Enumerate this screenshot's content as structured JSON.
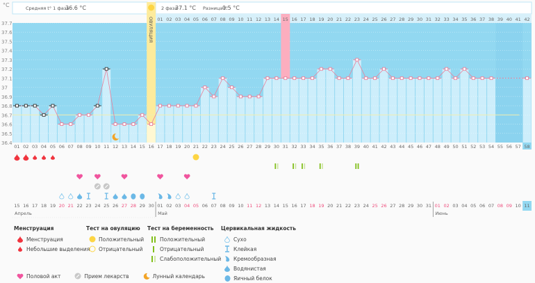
{
  "header": {
    "unit": "°C",
    "phase1_label": "Средняя t° 1 фаза",
    "phase1_value": "36.6 °C",
    "phase2_label": "2 фаза",
    "phase2_value": "37.1 °C",
    "diff_label": "Разница t°",
    "diff_value": "0.5 °C",
    "ovulation_label": "ОВУЛЯЦИЯ"
  },
  "colors": {
    "sky": "#92d8f1",
    "bar": "#cdeefb",
    "line": "#e8809b",
    "ovulation": "#fdeb9c",
    "pink_day": "#fcaebf",
    "coverline": "#f2edaf",
    "weekend": "#ee4c7c"
  },
  "chart_data": {
    "type": "line",
    "title": "",
    "ylabel": "°C",
    "xlabel": "",
    "ylim": [
      36.4,
      37.7
    ],
    "yticks": [
      "36.4",
      "36.5",
      "36.6",
      "36.7",
      "36.8",
      "36.9",
      "37",
      "37.1",
      "37.2",
      "37.3",
      "37.4",
      "37.5",
      "37.6",
      "37.7"
    ],
    "coverline": 36.7,
    "ovulation_day": 16,
    "highlight_phase2_day": 15,
    "cycle_days": [
      "01",
      "02",
      "03",
      "04",
      "05",
      "06",
      "07",
      "08",
      "09",
      "10",
      "11",
      "12",
      "13",
      "14",
      "15",
      "16",
      "17",
      "18",
      "19",
      "20",
      "21",
      "22",
      "23",
      "24",
      "25",
      "26",
      "27",
      "28",
      "29",
      "30",
      "31",
      "32",
      "33",
      "34",
      "35",
      "36",
      "37",
      "38",
      "39",
      "40",
      "41",
      "42",
      "43",
      "44",
      "45",
      "46",
      "47",
      "48",
      "49",
      "50",
      "51",
      "52",
      "53",
      "54",
      "55",
      "56",
      "57",
      "58"
    ],
    "phase2_days": [
      "01",
      "02",
      "03",
      "04",
      "05",
      "06",
      "07",
      "08",
      "09",
      "10",
      "11",
      "12",
      "13",
      "14",
      "15",
      "16",
      "17",
      "18",
      "19",
      "20",
      "21",
      "22",
      "23",
      "24",
      "25",
      "26",
      "27",
      "28",
      "29",
      "30",
      "31",
      "32",
      "33",
      "34",
      "35",
      "36",
      "37",
      "38",
      "39",
      "40",
      "41",
      "42"
    ],
    "temperatures": [
      36.8,
      36.8,
      36.8,
      36.7,
      36.8,
      36.6,
      36.6,
      36.7,
      36.7,
      36.8,
      37.2,
      36.6,
      36.6,
      36.6,
      36.7,
      36.6,
      36.8,
      36.8,
      36.8,
      36.8,
      36.8,
      37.0,
      36.9,
      37.1,
      37.0,
      36.9,
      36.9,
      36.9,
      37.1,
      37.1,
      37.1,
      37.1,
      37.1,
      37.1,
      37.2,
      37.2,
      37.1,
      37.1,
      37.3,
      37.1,
      37.1,
      37.2,
      37.1,
      37.1,
      37.1,
      37.1,
      37.1,
      37.1,
      37.2,
      37.1,
      37.2,
      37.1,
      37.1,
      37.1,
      null,
      null,
      null,
      37.1
    ],
    "black_markers_days": [
      1,
      2,
      3,
      4,
      5,
      10,
      11
    ],
    "missing_range": [
      55,
      57
    ],
    "today_day": 58,
    "moon_day": 12,
    "dates": [
      "15",
      "16",
      "17",
      "18",
      "19",
      "20",
      "21",
      "22",
      "23",
      "24",
      "25",
      "26",
      "27",
      "28",
      "29",
      "30",
      "01",
      "02",
      "03",
      "04",
      "05",
      "06",
      "07",
      "08",
      "09",
      "10",
      "11",
      "12",
      "13",
      "14",
      "15",
      "16",
      "17",
      "18",
      "19",
      "20",
      "21",
      "22",
      "23",
      "24",
      "25",
      "26",
      "27",
      "28",
      "29",
      "30",
      "31",
      "01",
      "02",
      "03",
      "04",
      "05",
      "06",
      "07",
      "08",
      "09",
      "10",
      "11"
    ],
    "weekend_dates_idx": [
      5,
      6,
      12,
      13,
      19,
      20,
      26,
      27,
      33,
      34,
      40,
      41,
      47,
      48,
      54,
      55
    ],
    "months": [
      {
        "label": "Апрель",
        "start": 0
      },
      {
        "label": "Май",
        "start": 16
      },
      {
        "label": "Июнь",
        "start": 47
      }
    ],
    "menstruation": [
      {
        "day": 1,
        "type": "heavy"
      },
      {
        "day": 2,
        "type": "heavy"
      },
      {
        "day": 3,
        "type": "light"
      },
      {
        "day": 4,
        "type": "light"
      },
      {
        "day": 5,
        "type": "light"
      }
    ],
    "ovulation_test": [
      {
        "day": 21,
        "type": "positive"
      }
    ],
    "pregnancy_test": [
      {
        "day": 30,
        "type": "weak"
      },
      {
        "day": 32,
        "type": "weak"
      },
      {
        "day": 33,
        "type": "weak"
      },
      {
        "day": 35,
        "type": "weak"
      },
      {
        "day": 39,
        "type": "positive"
      }
    ],
    "intercourse": [
      8,
      10,
      13,
      17,
      20
    ],
    "medication": [
      10,
      11
    ],
    "cervical": [
      {
        "day": 6,
        "type": "dry"
      },
      {
        "day": 7,
        "type": "dry"
      },
      {
        "day": 8,
        "type": "watery"
      },
      {
        "day": 9,
        "type": "sticky"
      },
      {
        "day": 11,
        "type": "sticky"
      },
      {
        "day": 12,
        "type": "watery"
      },
      {
        "day": 13,
        "type": "watery"
      },
      {
        "day": 14,
        "type": "eggwhite"
      },
      {
        "day": 15,
        "type": "eggwhite"
      },
      {
        "day": 17,
        "type": "creamy"
      },
      {
        "day": 18,
        "type": "creamy"
      },
      {
        "day": 19,
        "type": "dry"
      },
      {
        "day": 20,
        "type": "dry"
      },
      {
        "day": 23,
        "type": "sticky"
      }
    ]
  },
  "legend": {
    "menstruation": {
      "title": "Менструация",
      "items": [
        "Менструация",
        "Небольшие выделения"
      ]
    },
    "ovulation_test": {
      "title": "Тест на овуляцию",
      "items": [
        "Положительный",
        "Отрицательный"
      ]
    },
    "pregnancy_test": {
      "title": "Тест на беременность",
      "items": [
        "Положительный",
        "Отрицательный",
        "Слабоположительный"
      ]
    },
    "cervical": {
      "title": "Цервикальная жидкость",
      "items": [
        "Сухо",
        "Клейкая",
        "Кремообразная",
        "Водянистая",
        "Яичный белок"
      ]
    },
    "other": [
      "Половой акт",
      "Прием лекарств",
      "Лунный календарь"
    ]
  }
}
